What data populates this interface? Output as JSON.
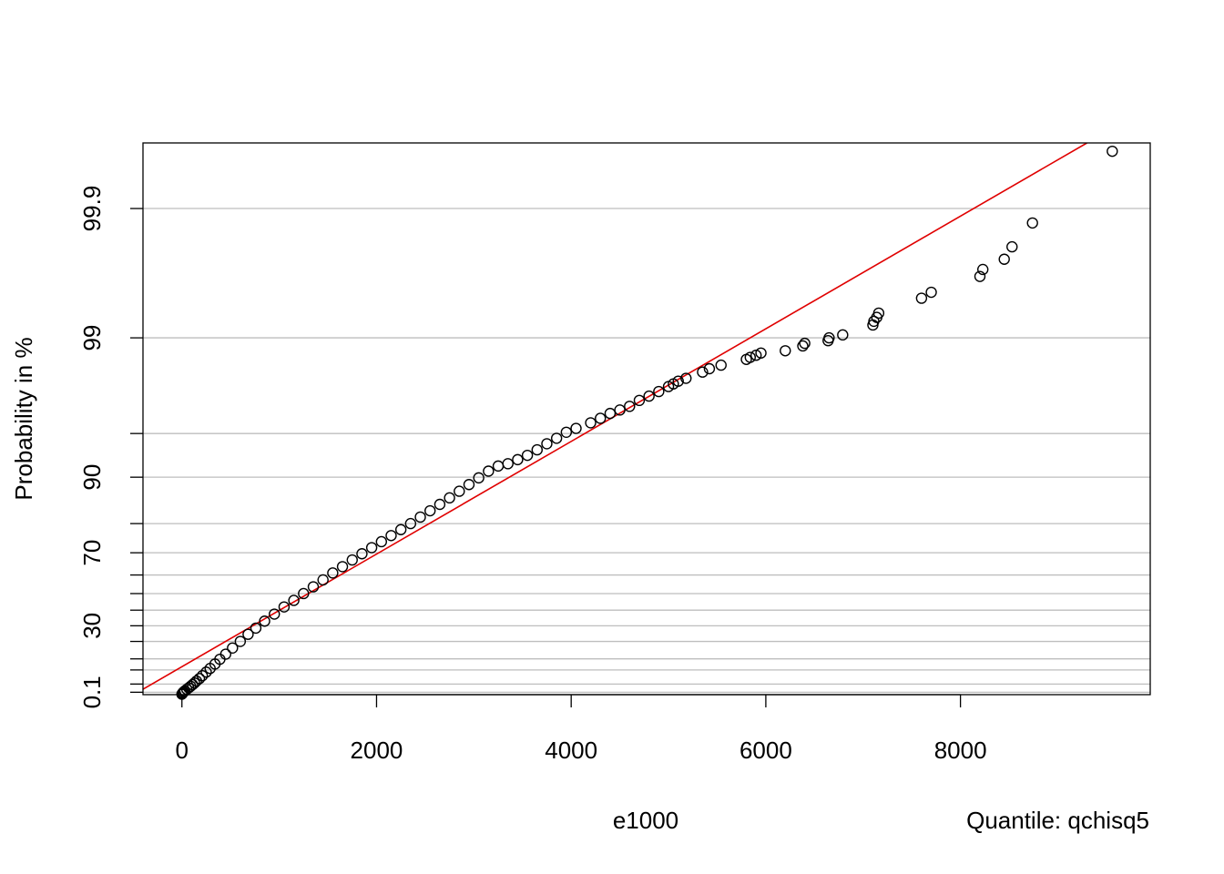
{
  "chart_data": {
    "type": "scatter",
    "title": "",
    "xlabel": "e1000",
    "ylabel": "Probability in %",
    "annotation": "Quantile: qchisq5",
    "x_range": [
      -400,
      9950
    ],
    "x_ticks": [
      0,
      2000,
      4000,
      6000,
      8000
    ],
    "x_tick_labels": [
      "0",
      "2000",
      "4000",
      "6000",
      "8000"
    ],
    "y_scale": "chi-squared quantile (df=5) probability scale",
    "y_range_percent": [
      0.02,
      99.97
    ],
    "y_tick_labels": [
      {
        "p": 0.1,
        "label": "0.1"
      },
      {
        "p": 30,
        "label": "30"
      },
      {
        "p": 70,
        "label": "70"
      },
      {
        "p": 90,
        "label": "90"
      },
      {
        "p": 99,
        "label": "99"
      },
      {
        "p": 99.9,
        "label": "99.9"
      }
    ],
    "gridlines_percent": [
      0.1,
      1,
      5,
      10,
      20,
      30,
      40,
      50,
      60,
      70,
      80,
      90,
      95,
      99,
      99.9
    ],
    "grid": true,
    "colors": {
      "points": "#000000",
      "fit_line": "#e00000",
      "grid": "#bebebe"
    },
    "fit_line": {
      "x": [
        -400,
        9300
      ],
      "p": [
        0.31,
        99.97
      ]
    },
    "series": [
      {
        "x": [
          0,
          5,
          10,
          20,
          30,
          50,
          70,
          90,
          110,
          130,
          150,
          180,
          210,
          250,
          290,
          340,
          390,
          450,
          520,
          600,
          680,
          760,
          850,
          950,
          1050,
          1150,
          1250,
          1350,
          1450,
          1550,
          1650,
          1750,
          1850,
          1950,
          2050,
          2150,
          2250,
          2350,
          2450,
          2550,
          2650,
          2750,
          2850,
          2950,
          3050,
          3150,
          3250,
          3350,
          3450,
          3550,
          3650,
          3750,
          3850,
          3950,
          4050,
          4200,
          4300,
          4400,
          4500,
          4600,
          4700,
          4800,
          4900,
          5000,
          5050,
          5100,
          5180,
          5350,
          5420,
          5540,
          5800,
          5840,
          5900,
          5950,
          6200,
          6380,
          6400,
          6640,
          6650,
          6790,
          7100,
          7110,
          7140,
          7160,
          7600,
          7700,
          8200,
          8230,
          8450,
          8530,
          8740,
          9560
        ],
        "p": [
          0.03,
          0.05,
          0.08,
          0.12,
          0.18,
          0.3,
          0.45,
          0.65,
          0.9,
          1.2,
          1.6,
          2.2,
          3,
          4.2,
          5.6,
          7.5,
          9.8,
          12.5,
          16,
          20,
          24.5,
          28.5,
          33,
          37.5,
          42,
          46,
          50,
          53.8,
          57.5,
          61,
          64,
          67,
          69.6,
          72,
          74.2,
          76.3,
          78.2,
          80,
          81.8,
          83.4,
          84.9,
          86.3,
          87.6,
          88.8,
          89.9,
          90.9,
          91.6,
          91.9,
          92.4,
          92.9,
          93.5,
          94.1,
          94.6,
          95.1,
          95.4,
          95.8,
          96.1,
          96.4,
          96.6,
          96.8,
          97.1,
          97.3,
          97.5,
          97.7,
          97.8,
          97.9,
          98,
          98.2,
          98.3,
          98.4,
          98.55,
          98.6,
          98.65,
          98.7,
          98.75,
          98.85,
          98.9,
          98.95,
          99,
          99.05,
          99.2,
          99.25,
          99.3,
          99.35,
          99.5,
          99.55,
          99.66,
          99.7,
          99.75,
          99.8,
          99.87,
          99.965
        ]
      }
    ]
  }
}
